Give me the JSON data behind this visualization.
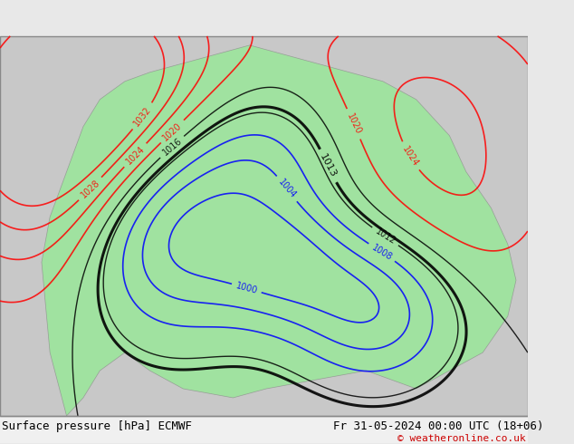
{
  "title_left": "Surface pressure [hPa] ECMWF",
  "title_right": "Fr 31-05-2024 00:00 UTC (18+06)",
  "copyright": "© weatheronline.co.uk",
  "bg_color": "#e8e8e8",
  "map_bg_color": "#d0d0d0",
  "land_color": "#90ee90",
  "font_family": "monospace",
  "bottom_bar_color": "#f0f0f0"
}
